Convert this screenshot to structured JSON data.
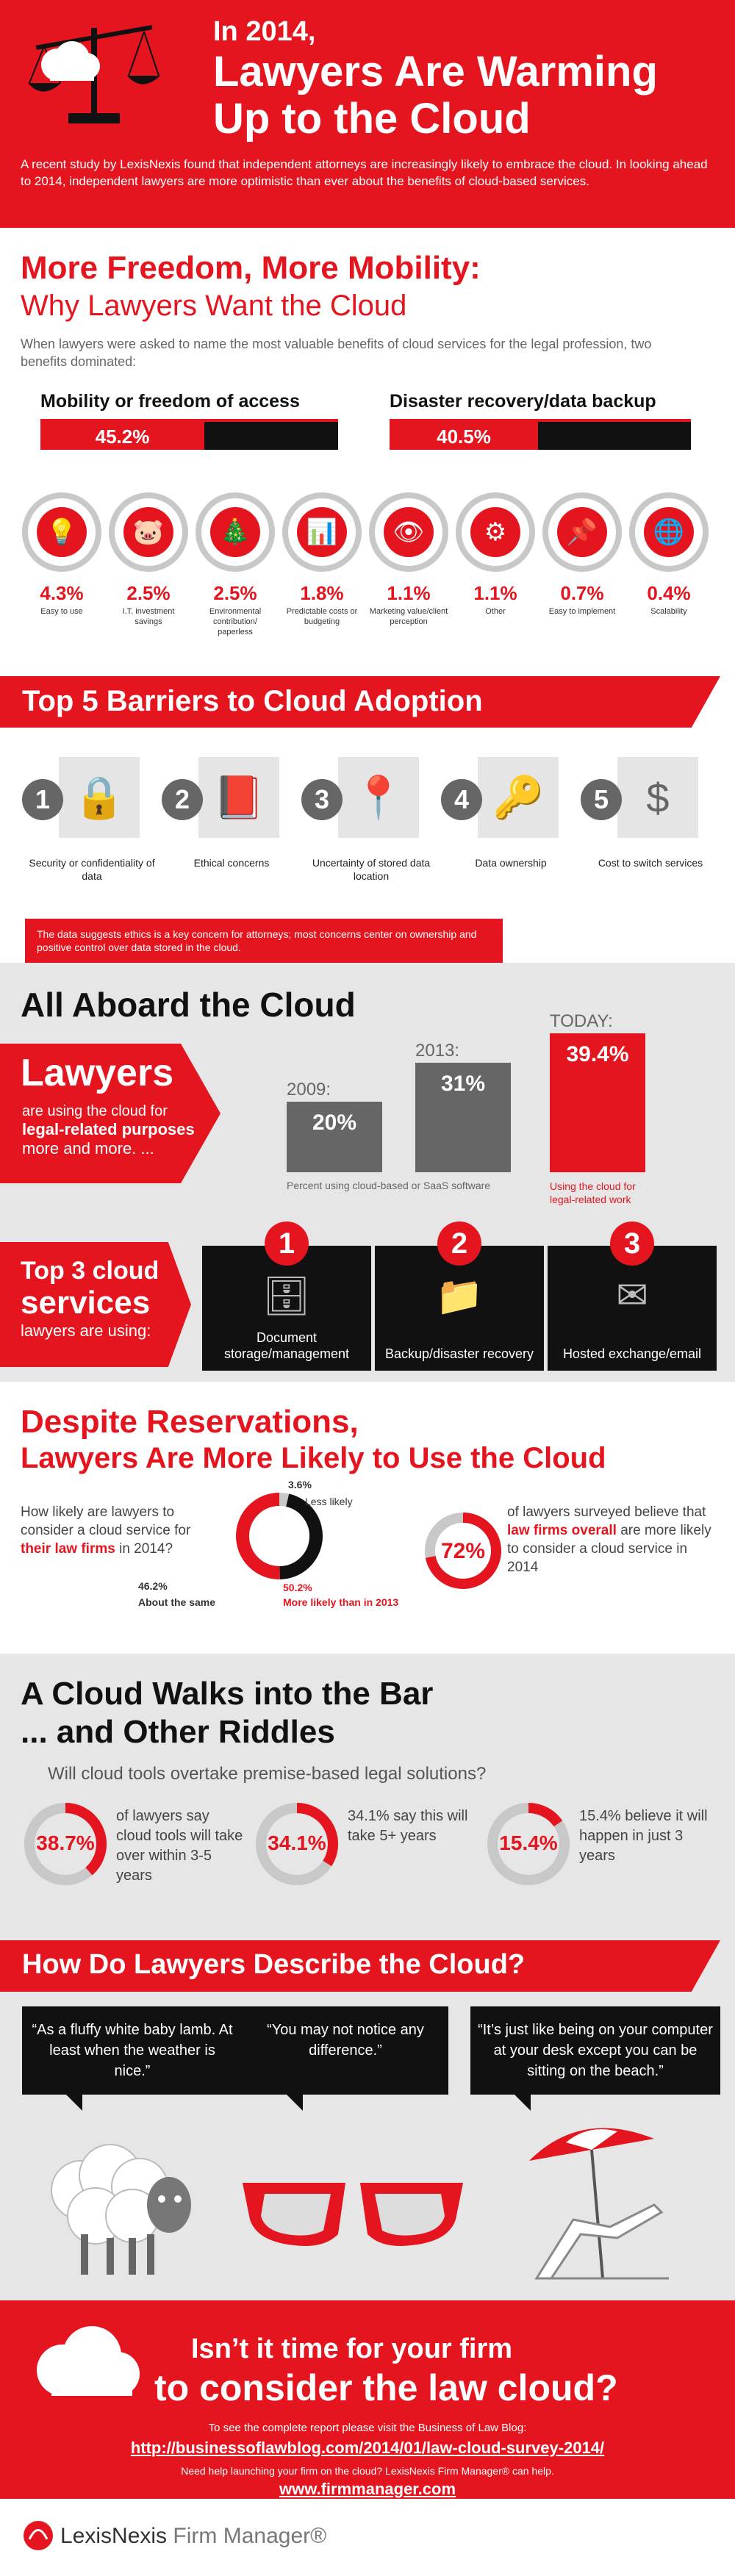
{
  "header": {
    "title_line1": "In 2014,",
    "title_line2": "Lawyers Are Warming",
    "title_line3": "Up to the Cloud",
    "intro": "A recent study by LexisNexis found that independent attorneys are increasingly likely to embrace the cloud. In looking ahead to 2014, independent lawyers are more optimistic than ever about the benefits of cloud-based services."
  },
  "freedom": {
    "title1": "More Freedom, More Mobility:",
    "title2": "Why Lawyers Want the Cloud",
    "intro": "When lawyers were asked to name the most valuable benefits of cloud services for the legal profession, two benefits dominated:",
    "top": [
      {
        "label": "Mobility or freedom of access",
        "value": "45.2%",
        "fraction": 0.452
      },
      {
        "label": "Disaster recovery/data backup",
        "value": "40.5%",
        "fraction": 0.405
      }
    ],
    "items": [
      {
        "value": "4.3%",
        "label": "Easy to use",
        "icon": "lightbulb-icon",
        "glyph": "💡"
      },
      {
        "value": "2.5%",
        "label": "I.T. investment savings",
        "icon": "piggy-bank-icon",
        "glyph": "🐷"
      },
      {
        "value": "2.5%",
        "label": "Environmental contribution/ paperless",
        "icon": "tree-icon",
        "glyph": "🎄"
      },
      {
        "value": "1.8%",
        "label": "Predictable costs or budgeting",
        "icon": "bar-chart-icon",
        "glyph": "📊"
      },
      {
        "value": "1.1%",
        "label": "Marketing value/client perception",
        "icon": "eye-icon",
        "glyph": "👁"
      },
      {
        "value": "1.1%",
        "label": "Other",
        "icon": "gear-icon",
        "glyph": "⚙"
      },
      {
        "value": "0.7%",
        "label": "Easy to implement",
        "icon": "pushpin-icon",
        "glyph": "📌"
      },
      {
        "value": "0.4%",
        "label": "Scalability",
        "icon": "globe-icon",
        "glyph": "🌐"
      }
    ]
  },
  "barriers": {
    "title": "Top 5 Barriers to Cloud Adoption",
    "items": [
      {
        "num": "1",
        "label": "Security or confidentiality of data",
        "icon": "padlock-icon",
        "glyph": "🔒"
      },
      {
        "num": "2",
        "label": "Ethical concerns",
        "icon": "book-icon",
        "glyph": "📕"
      },
      {
        "num": "3",
        "label": "Uncertainty of stored data location",
        "icon": "map-pin-icon",
        "glyph": "📍"
      },
      {
        "num": "4",
        "label": "Data ownership",
        "icon": "key-icon",
        "glyph": "🔑"
      },
      {
        "num": "5",
        "label": "Cost to switch services",
        "icon": "money-bag-icon",
        "glyph": "$"
      }
    ],
    "note": "The data suggests ethics is a key concern for attorneys; most concerns center on ownership and positive control over data stored in the cloud."
  },
  "aboard": {
    "title": "All Aboard the Cloud",
    "lawyers": "Lawyers",
    "lawyers_sub1": "are using the cloud for",
    "lawyers_sub2": "legal-related purposes",
    "lawyers_sub3": "more and more. ...",
    "bars": [
      {
        "year": "2009:",
        "value": "20%",
        "pct": 20
      },
      {
        "year": "2013:",
        "value": "31%",
        "pct": 31
      },
      {
        "year": "TODAY:",
        "value": "39.4%",
        "pct": 39.4
      }
    ],
    "bars_caption": "Percent using cloud-based or SaaS software",
    "today_caption": "Using the cloud for legal-related work",
    "services_title1": "Top 3 cloud",
    "services_title2": "services",
    "services_title3": "lawyers are using:",
    "services": [
      {
        "num": "1",
        "label": "Document storage/management",
        "icon": "filing-cabinet-icon",
        "glyph": "🗄"
      },
      {
        "num": "2",
        "label": "Backup/disaster recovery",
        "icon": "folder-icon",
        "glyph": "📁"
      },
      {
        "num": "3",
        "label": "Hosted exchange/email",
        "icon": "email-icon",
        "glyph": "✉"
      }
    ]
  },
  "despite": {
    "title1": "Despite Reservations,",
    "title2": "Lawyers Are More Likely to Use the Cloud",
    "q1": "How likely are lawyers to consider a cloud service for",
    "q2": "their law firms",
    "q3": "in 2014?",
    "donut": [
      {
        "value": "3.6%",
        "label": "Less likely",
        "pct": 3.6
      },
      {
        "value": "46.2%",
        "label": "About the same",
        "pct": 46.2
      },
      {
        "value": "50.2%",
        "label": "More likely than in 2013",
        "pct": 50.2
      }
    ],
    "ring_value": "72%",
    "ring_pct": 72,
    "ring_text1": "of lawyers surveyed believe that",
    "ring_text2": "law firms overall",
    "ring_text3": "are more likely to consider a cloud service in 2014"
  },
  "riddles": {
    "title1": "A Cloud Walks into the Bar",
    "title2": "... and Other Riddles",
    "question": "Will cloud tools overtake premise-based legal solutions?",
    "rings": [
      {
        "value": "38.7%",
        "pct": 38.7,
        "text": "of lawyers say cloud tools will take over within 3-5 years"
      },
      {
        "value": "34.1%",
        "pct": 34.1,
        "text": "34.1% say this will take 5+ years"
      },
      {
        "value": "15.4%",
        "pct": 15.4,
        "text": "15.4% believe it will happen in just 3 years"
      }
    ]
  },
  "describe": {
    "title": "How Do Lawyers Describe the Cloud?",
    "quotes": [
      "“As a fluffy white baby lamb. At least when the weather is nice.”",
      "“You may not notice any difference.”",
      "“It’s just like being on your computer at your desk except you can be sitting on the beach.”"
    ]
  },
  "footer": {
    "line1": "Isn’t it time for your firm",
    "line2": "to consider the law cloud?",
    "visit": "To see the complete report please visit the Business of Law Blog:",
    "url": "http://businessoflawblog.com/2014/01/law-cloud-survey-2014/",
    "help": "Need help launching your firm on the cloud? LexisNexis Firm Manager® can help.",
    "site": "www.firmmanager.com",
    "brand": "LexisNexis",
    "product": "Firm Manager®"
  },
  "colors": {
    "accent": "#e4151f",
    "dark": "#111111",
    "gray": "#666666",
    "light": "#e6e6e6"
  }
}
